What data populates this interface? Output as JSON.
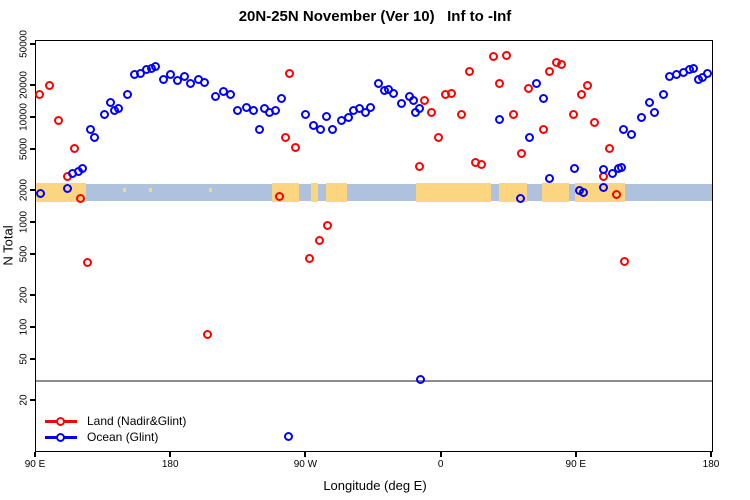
{
  "title": "20N-25N November (Ver 10)   Inf to -Inf",
  "axes": {
    "x": {
      "label": "Longitude (deg E)",
      "range_deg": [
        0,
        450
      ],
      "ticks": [
        {
          "pos": 0,
          "label": "90 E"
        },
        {
          "pos": 90,
          "label": "180"
        },
        {
          "pos": 180,
          "label": "90 W"
        },
        {
          "pos": 270,
          "label": "0"
        },
        {
          "pos": 360,
          "label": "90 E"
        },
        {
          "pos": 450,
          "label": "180"
        }
      ]
    },
    "y": {
      "label": "N Total",
      "scale": "log",
      "ticks": [
        20,
        50,
        100,
        200,
        500,
        1000,
        2000,
        5000,
        10000,
        20000,
        50000
      ]
    }
  },
  "legend": [
    {
      "label": "Land (Nadir&Glint)",
      "color": "#ff0000"
    },
    {
      "label": "Ocean (Glint)",
      "color": "#0000ff"
    }
  ],
  "refline": {
    "value": 31,
    "color": "#8c8c8c"
  },
  "map_band": {
    "ocean_color": "#aec2dd",
    "land_color": "#fbd57f",
    "top_value": 2350,
    "bottom_value": 1620,
    "land_segments_deg": [
      [
        0,
        33
      ],
      [
        157,
        175
      ],
      [
        183,
        188
      ],
      [
        193,
        207
      ],
      [
        253,
        303
      ],
      [
        308,
        327
      ],
      [
        337,
        355
      ],
      [
        359,
        392
      ]
    ],
    "islet_specks_deg": [
      58,
      75,
      115,
      200
    ]
  },
  "chart_data": {
    "type": "scatter",
    "title": "20N-25N November (Ver 10)   Inf to -Inf",
    "xlabel": "Longitude (deg E)",
    "ylabel": "N Total",
    "xlim_deg_from_90E": [
      0,
      450
    ],
    "ylim": [
      15,
      60000
    ],
    "grid": false,
    "legend_position": "bottom-left",
    "series": [
      {
        "name": "Land (Nadir&Glint)",
        "color": "#ff0000",
        "marker": "open-circle",
        "points": [
          [
            2,
            16600
          ],
          [
            9.3,
            20200
          ],
          [
            15.3,
            9400
          ],
          [
            25.3,
            5100
          ],
          [
            20.7,
            2800
          ],
          [
            29.3,
            1730
          ],
          [
            34,
            425
          ],
          [
            114,
            86
          ],
          [
            168.7,
            26800
          ],
          [
            162,
            1770
          ],
          [
            166,
            6450
          ],
          [
            172.7,
            5290
          ],
          [
            182,
            464
          ],
          [
            188.7,
            674
          ],
          [
            194,
            957
          ],
          [
            255.3,
            3490
          ],
          [
            258.7,
            14800
          ],
          [
            263.3,
            11400
          ],
          [
            268,
            6450
          ],
          [
            272.7,
            16600
          ],
          [
            276.7,
            17300
          ],
          [
            283.3,
            10900
          ],
          [
            288.7,
            28000
          ],
          [
            292.7,
            3810
          ],
          [
            296.7,
            3570
          ],
          [
            304.7,
            38900
          ],
          [
            308.7,
            21100
          ],
          [
            313.3,
            39800
          ],
          [
            318,
            10900
          ],
          [
            323.3,
            4640
          ],
          [
            328,
            18900
          ],
          [
            338,
            7690
          ],
          [
            342,
            28000
          ],
          [
            346.7,
            34100
          ],
          [
            350,
            32000
          ],
          [
            358,
            10900
          ],
          [
            363.3,
            16900
          ],
          [
            367.3,
            20200
          ],
          [
            372,
            9160
          ],
          [
            378,
            2800
          ],
          [
            382,
            5070
          ],
          [
            386.7,
            1850
          ],
          [
            392,
            434
          ]
        ]
      },
      {
        "name": "Ocean (Glint)",
        "color": "#0000ff",
        "marker": "open-circle",
        "points": [
          [
            2.7,
            1930
          ],
          [
            20.7,
            2110
          ],
          [
            24,
            2990
          ],
          [
            28,
            3060
          ],
          [
            30.7,
            3340
          ],
          [
            36,
            7690
          ],
          [
            38.7,
            6590
          ],
          [
            45.3,
            10900
          ],
          [
            49.3,
            13900
          ],
          [
            52,
            11700
          ],
          [
            54.7,
            12400
          ],
          [
            60.7,
            16900
          ],
          [
            65.3,
            26200
          ],
          [
            69.3,
            26800
          ],
          [
            73.3,
            28700
          ],
          [
            76.7,
            29900
          ],
          [
            79.3,
            30600
          ],
          [
            84.7,
            23500
          ],
          [
            89.3,
            26200
          ],
          [
            94,
            23000
          ],
          [
            98.7,
            25100
          ],
          [
            102.7,
            21100
          ],
          [
            108,
            23500
          ],
          [
            112,
            22000
          ],
          [
            119.3,
            16200
          ],
          [
            124.7,
            17700
          ],
          [
            129.3,
            16600
          ],
          [
            134,
            11700
          ],
          [
            140,
            12700
          ],
          [
            144.7,
            11700
          ],
          [
            148.7,
            7850
          ],
          [
            152,
            12200
          ],
          [
            155.3,
            11400
          ],
          [
            159.3,
            11900
          ],
          [
            163.3,
            15500
          ],
          [
            168,
            9.2
          ],
          [
            179.3,
            10900
          ],
          [
            184.7,
            8570
          ],
          [
            189.3,
            7690
          ],
          [
            193.3,
            10400
          ],
          [
            197.3,
            7690
          ],
          [
            203.3,
            9570
          ],
          [
            208,
            10200
          ],
          [
            211.3,
            11900
          ],
          [
            215.3,
            12400
          ],
          [
            219.3,
            11400
          ],
          [
            222.7,
            12700
          ],
          [
            228,
            21500
          ],
          [
            232,
            18100
          ],
          [
            234.7,
            18500
          ],
          [
            238,
            17300
          ],
          [
            243.3,
            13600
          ],
          [
            248.7,
            16200
          ],
          [
            251.3,
            14800
          ],
          [
            252.7,
            11200
          ],
          [
            255.3,
            12400
          ],
          [
            256,
            32
          ],
          [
            308.7,
            9780
          ],
          [
            322.7,
            1730
          ],
          [
            328.7,
            6450
          ],
          [
            333.3,
            21100
          ],
          [
            338,
            15200
          ],
          [
            342,
            2680
          ],
          [
            358.7,
            3340
          ],
          [
            362,
            2060
          ],
          [
            364.7,
            1970
          ],
          [
            378,
            3200
          ],
          [
            378,
            2200
          ],
          [
            384,
            2930
          ],
          [
            388,
            3270
          ],
          [
            390,
            3410
          ],
          [
            391.3,
            7690
          ],
          [
            396.7,
            6890
          ],
          [
            403.3,
            10200
          ],
          [
            408.7,
            13900
          ],
          [
            412,
            11400
          ],
          [
            418,
            16600
          ],
          [
            422,
            25100
          ],
          [
            426.7,
            26200
          ],
          [
            431.3,
            27400
          ],
          [
            434.7,
            28700
          ],
          [
            438,
            29900
          ],
          [
            440.7,
            23500
          ],
          [
            444,
            24500
          ],
          [
            446.7,
            26800
          ]
        ]
      }
    ]
  }
}
